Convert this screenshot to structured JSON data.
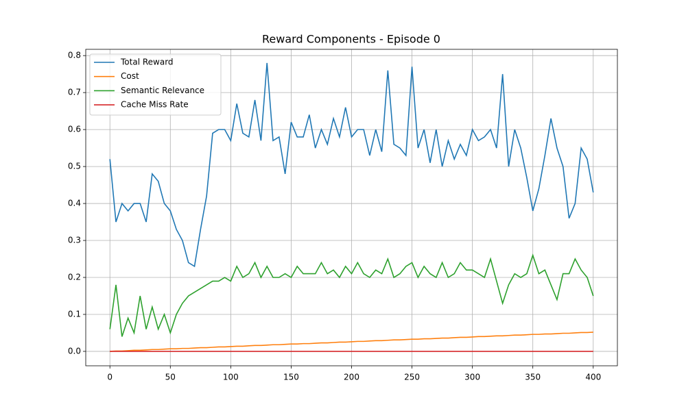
{
  "chart_data": {
    "type": "line",
    "title": "Reward Components - Episode 0",
    "x": [
      0,
      5,
      10,
      15,
      20,
      25,
      30,
      35,
      40,
      45,
      50,
      55,
      60,
      65,
      70,
      75,
      80,
      85,
      90,
      95,
      100,
      105,
      110,
      115,
      120,
      125,
      130,
      135,
      140,
      145,
      150,
      155,
      160,
      165,
      170,
      175,
      180,
      185,
      190,
      195,
      200,
      205,
      210,
      215,
      220,
      225,
      230,
      235,
      240,
      245,
      250,
      255,
      260,
      265,
      270,
      275,
      280,
      285,
      290,
      295,
      300,
      305,
      310,
      315,
      320,
      325,
      330,
      335,
      340,
      345,
      350,
      355,
      360,
      365,
      370,
      375,
      380,
      385,
      390,
      395,
      400
    ],
    "series": [
      {
        "name": "Total Reward",
        "color": "#1f77b4",
        "values": [
          0.52,
          0.35,
          0.4,
          0.38,
          0.4,
          0.4,
          0.35,
          0.48,
          0.46,
          0.4,
          0.38,
          0.33,
          0.3,
          0.24,
          0.23,
          0.33,
          0.42,
          0.59,
          0.6,
          0.6,
          0.57,
          0.67,
          0.59,
          0.58,
          0.68,
          0.57,
          0.78,
          0.57,
          0.58,
          0.48,
          0.62,
          0.58,
          0.58,
          0.64,
          0.55,
          0.6,
          0.56,
          0.63,
          0.58,
          0.66,
          0.58,
          0.6,
          0.6,
          0.53,
          0.6,
          0.54,
          0.76,
          0.56,
          0.55,
          0.53,
          0.77,
          0.55,
          0.6,
          0.51,
          0.6,
          0.5,
          0.57,
          0.52,
          0.56,
          0.53,
          0.6,
          0.57,
          0.58,
          0.6,
          0.55,
          0.75,
          0.5,
          0.6,
          0.55,
          0.47,
          0.38,
          0.44,
          0.53,
          0.63,
          0.55,
          0.5,
          0.36,
          0.4,
          0.55,
          0.52,
          0.43
        ]
      },
      {
        "name": "Cost",
        "color": "#ff7f0e",
        "values": [
          0,
          0.001,
          0.001,
          0.002,
          0.003,
          0.003,
          0.004,
          0.005,
          0.005,
          0.006,
          0.007,
          0.007,
          0.008,
          0.008,
          0.009,
          0.01,
          0.01,
          0.011,
          0.012,
          0.012,
          0.013,
          0.014,
          0.014,
          0.015,
          0.016,
          0.016,
          0.017,
          0.018,
          0.018,
          0.019,
          0.02,
          0.02,
          0.021,
          0.021,
          0.022,
          0.023,
          0.023,
          0.024,
          0.025,
          0.025,
          0.026,
          0.027,
          0.027,
          0.028,
          0.029,
          0.029,
          0.03,
          0.031,
          0.031,
          0.032,
          0.033,
          0.033,
          0.034,
          0.034,
          0.035,
          0.036,
          0.036,
          0.037,
          0.038,
          0.038,
          0.039,
          0.04,
          0.04,
          0.041,
          0.042,
          0.042,
          0.043,
          0.044,
          0.044,
          0.045,
          0.046,
          0.046,
          0.047,
          0.047,
          0.048,
          0.049,
          0.049,
          0.05,
          0.051,
          0.051,
          0.052
        ]
      },
      {
        "name": "Semantic Relevance",
        "color": "#2ca02c",
        "values": [
          0.06,
          0.18,
          0.04,
          0.09,
          0.05,
          0.15,
          0.06,
          0.12,
          0.06,
          0.1,
          0.05,
          0.1,
          0.13,
          0.15,
          0.16,
          0.17,
          0.18,
          0.19,
          0.19,
          0.2,
          0.19,
          0.23,
          0.2,
          0.21,
          0.24,
          0.2,
          0.23,
          0.2,
          0.2,
          0.21,
          0.2,
          0.23,
          0.21,
          0.21,
          0.21,
          0.24,
          0.21,
          0.22,
          0.2,
          0.23,
          0.21,
          0.24,
          0.21,
          0.2,
          0.22,
          0.21,
          0.25,
          0.2,
          0.21,
          0.23,
          0.24,
          0.2,
          0.23,
          0.21,
          0.2,
          0.24,
          0.2,
          0.21,
          0.24,
          0.22,
          0.22,
          0.21,
          0.2,
          0.25,
          0.19,
          0.13,
          0.18,
          0.21,
          0.2,
          0.21,
          0.26,
          0.21,
          0.22,
          0.18,
          0.14,
          0.21,
          0.21,
          0.25,
          0.22,
          0.2,
          0.15
        ]
      },
      {
        "name": "Cache Miss Rate",
        "color": "#d62728",
        "values": [
          0,
          0,
          0,
          0,
          0,
          0,
          0,
          0,
          0,
          0,
          0,
          0,
          0,
          0,
          0,
          0,
          0,
          0,
          0,
          0,
          0,
          0,
          0,
          0,
          0,
          0,
          0,
          0,
          0,
          0,
          0,
          0,
          0,
          0,
          0,
          0,
          0,
          0,
          0,
          0,
          0,
          0,
          0,
          0,
          0,
          0,
          0,
          0,
          0,
          0,
          0,
          0,
          0,
          0,
          0,
          0,
          0,
          0,
          0,
          0,
          0,
          0,
          0,
          0,
          0,
          0,
          0,
          0,
          0,
          0,
          0,
          0,
          0,
          0,
          0,
          0,
          0,
          0,
          0,
          0,
          0
        ]
      }
    ],
    "xlim": [
      -20,
      420
    ],
    "xticks": [
      0,
      50,
      100,
      150,
      200,
      250,
      300,
      350,
      400
    ],
    "ylim": [
      -0.039,
      0.817
    ],
    "yticks": [
      {
        "value": 0,
        "label": "0.0"
      },
      0.1,
      0.2,
      0.3,
      0.4,
      0.5,
      0.6,
      0.7,
      0.8
    ],
    "grid": true,
    "legend": "upper left"
  }
}
